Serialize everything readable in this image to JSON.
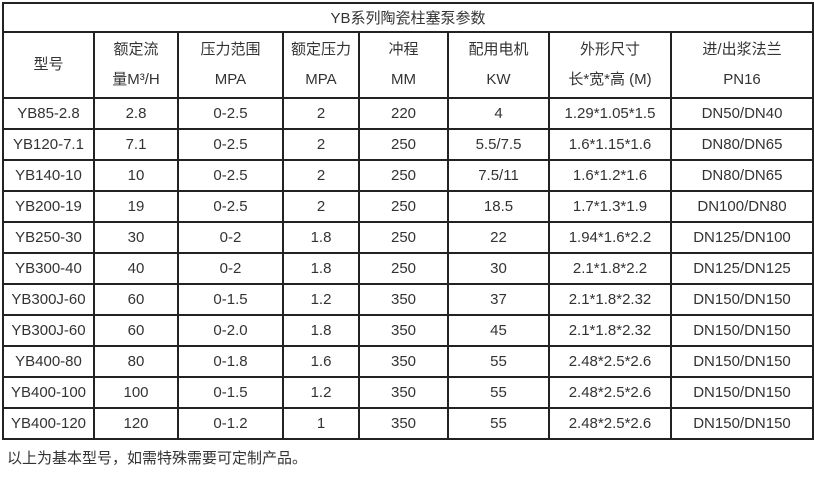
{
  "title": "YB系列陶瓷柱塞泵参数",
  "table": {
    "columns": [
      {
        "lines": [
          "型号"
        ]
      },
      {
        "lines": [
          "额定流",
          "量M³/H"
        ]
      },
      {
        "lines": [
          "压力范围",
          "MPA"
        ]
      },
      {
        "lines": [
          "额定压力",
          "MPA"
        ]
      },
      {
        "lines": [
          "冲程",
          "MM"
        ]
      },
      {
        "lines": [
          "配用电机",
          "KW"
        ]
      },
      {
        "lines": [
          "外形尺寸",
          "长*宽*高 (M)"
        ]
      },
      {
        "lines": [
          "进/出浆法兰",
          "PN16"
        ]
      }
    ],
    "rows": [
      [
        "YB85-2.8",
        "2.8",
        "0-2.5",
        "2",
        "220",
        "4",
        "1.29*1.05*1.5",
        "DN50/DN40"
      ],
      [
        "YB120-7.1",
        "7.1",
        "0-2.5",
        "2",
        "250",
        "5.5/7.5",
        "1.6*1.15*1.6",
        "DN80/DN65"
      ],
      [
        "YB140-10",
        "10",
        "0-2.5",
        "2",
        "250",
        "7.5/11",
        "1.6*1.2*1.6",
        "DN80/DN65"
      ],
      [
        "YB200-19",
        "19",
        "0-2.5",
        "2",
        "250",
        "18.5",
        "1.7*1.3*1.9",
        "DN100/DN80"
      ],
      [
        "YB250-30",
        "30",
        "0-2",
        "1.8",
        "250",
        "22",
        "1.94*1.6*2.2",
        "DN125/DN100"
      ],
      [
        "YB300-40",
        "40",
        "0-2",
        "1.8",
        "250",
        "30",
        "2.1*1.8*2.2",
        "DN125/DN125"
      ],
      [
        "YB300J-60",
        "60",
        "0-1.5",
        "1.2",
        "350",
        "37",
        "2.1*1.8*2.32",
        "DN150/DN150"
      ],
      [
        "YB300J-60",
        "60",
        "0-2.0",
        "1.8",
        "350",
        "45",
        "2.1*1.8*2.32",
        "DN150/DN150"
      ],
      [
        "YB400-80",
        "80",
        "0-1.8",
        "1.6",
        "350",
        "55",
        "2.48*2.5*2.6",
        "DN150/DN150"
      ],
      [
        "YB400-100",
        "100",
        "0-1.5",
        "1.2",
        "350",
        "55",
        "2.48*2.5*2.6",
        "DN150/DN150"
      ],
      [
        "YB400-120",
        "120",
        "0-1.2",
        "1",
        "350",
        "55",
        "2.48*2.5*2.6",
        "DN150/DN150"
      ]
    ]
  },
  "footer_note": "以上为基本型号，如需特殊需要可定制产品。",
  "colors": {
    "border": "#222222",
    "text": "#333333",
    "background": "#ffffff"
  }
}
